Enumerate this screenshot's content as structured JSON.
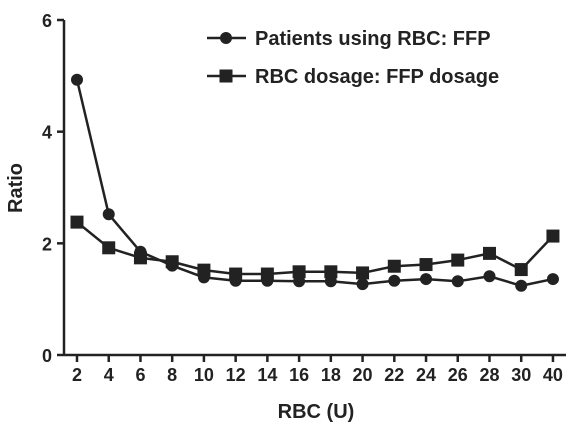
{
  "chart_data": {
    "type": "line",
    "title": "",
    "xlabel": "RBC (U)",
    "ylabel": "Ratio",
    "categories": [
      "2",
      "4",
      "6",
      "8",
      "10",
      "12",
      "14",
      "16",
      "18",
      "20",
      "22",
      "24",
      "26",
      "28",
      "30",
      "40"
    ],
    "ylim": [
      0,
      6
    ],
    "yticks": [
      "0",
      "2",
      "4",
      "6"
    ],
    "grid": false,
    "legend_position": "top-right",
    "series": [
      {
        "name": "Patients using RBC: FFP",
        "marker": "circle",
        "color": "#222222",
        "values": [
          4.93,
          2.52,
          1.85,
          1.6,
          1.39,
          1.33,
          1.33,
          1.32,
          1.32,
          1.27,
          1.33,
          1.36,
          1.32,
          1.41,
          1.24,
          1.36
        ]
      },
      {
        "name": "RBC dosage: FFP dosage",
        "marker": "square",
        "color": "#222222",
        "values": [
          2.38,
          1.92,
          1.74,
          1.67,
          1.52,
          1.45,
          1.45,
          1.49,
          1.49,
          1.47,
          1.59,
          1.62,
          1.7,
          1.82,
          1.53,
          2.13
        ]
      }
    ]
  }
}
